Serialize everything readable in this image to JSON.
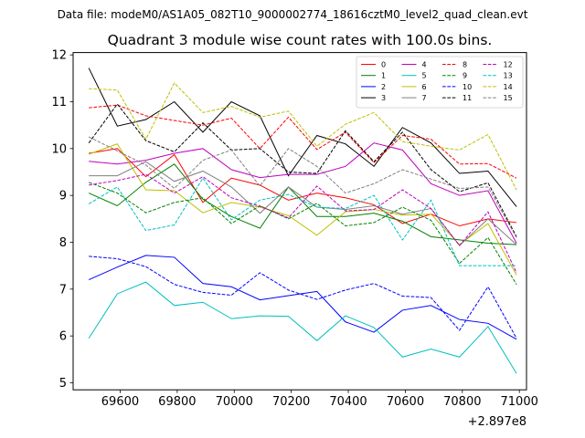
{
  "chart_data": {
    "type": "line",
    "suptitle": "Data file: modeM0/AS1A05_082T10_9000002774_18616cztM0_level2_quad_clean.evt",
    "title": "Quadrant 3 module wise count rates with 100.0s bins.",
    "xlabel": "",
    "ylabel": "",
    "x_offset_label": "+2.897e8",
    "xlim": [
      69435,
      71025
    ],
    "ylim": [
      4.85,
      12.05
    ],
    "x_ticks": [
      69600,
      69800,
      70000,
      70200,
      70400,
      70600,
      70800,
      71000
    ],
    "x_tick_labels": [
      "69600",
      "69800",
      "70000",
      "70200",
      "70400",
      "70600",
      "70800",
      "71000"
    ],
    "y_ticks": [
      5,
      6,
      7,
      8,
      9,
      10,
      11,
      12
    ],
    "y_tick_labels": [
      "5",
      "6",
      "7",
      "8",
      "9",
      "10",
      "11",
      "12"
    ],
    "legend_position": "top-right",
    "grid": false,
    "x": [
      69490,
      69590,
      69690,
      69790,
      69890,
      69990,
      70090,
      70190,
      70290,
      70390,
      70490,
      70590,
      70690,
      70790,
      70890,
      70990
    ],
    "series": [
      {
        "name": "0",
        "color": "#ff0000",
        "dash": "solid",
        "values": [
          9.9,
          10.0,
          9.4,
          9.87,
          8.85,
          9.37,
          9.22,
          8.9,
          9.05,
          8.95,
          8.8,
          8.4,
          8.6,
          8.35,
          8.5,
          8.42
        ]
      },
      {
        "name": "1",
        "color": "#008000",
        "dash": "solid",
        "values": [
          9.05,
          8.78,
          9.28,
          9.67,
          8.92,
          8.55,
          8.3,
          9.18,
          8.55,
          8.55,
          8.62,
          8.45,
          8.12,
          8.05,
          7.98,
          7.95
        ]
      },
      {
        "name": "2",
        "color": "#0000ff",
        "dash": "solid",
        "values": [
          7.2,
          7.47,
          7.72,
          7.68,
          7.12,
          7.05,
          6.77,
          6.86,
          6.95,
          6.3,
          6.08,
          6.55,
          6.65,
          6.35,
          6.27,
          5.93
        ]
      },
      {
        "name": "3",
        "color": "#000000",
        "dash": "solid",
        "values": [
          11.72,
          10.48,
          10.62,
          11.0,
          10.35,
          11.0,
          10.7,
          9.42,
          10.28,
          10.1,
          9.62,
          10.45,
          10.12,
          9.47,
          9.52,
          8.76
        ]
      },
      {
        "name": "4",
        "color": "#bf00bf",
        "dash": "solid",
        "values": [
          9.73,
          9.67,
          9.75,
          9.9,
          10.0,
          9.55,
          9.38,
          9.45,
          9.45,
          9.62,
          10.12,
          9.97,
          9.25,
          9.0,
          9.1,
          7.98
        ]
      },
      {
        "name": "5",
        "color": "#00bfbf",
        "dash": "solid",
        "values": [
          5.95,
          6.9,
          7.15,
          6.65,
          6.72,
          6.37,
          6.43,
          6.42,
          5.9,
          6.43,
          6.18,
          5.55,
          5.72,
          5.55,
          6.2,
          5.2
        ]
      },
      {
        "name": "6",
        "color": "#bfbf00",
        "dash": "solid",
        "values": [
          9.88,
          10.1,
          9.12,
          9.1,
          8.63,
          8.85,
          8.75,
          8.57,
          8.15,
          8.65,
          8.7,
          8.58,
          8.6,
          7.95,
          8.4,
          7.3
        ]
      },
      {
        "name": "7",
        "color": "#808080",
        "dash": "solid",
        "values": [
          9.42,
          9.42,
          9.72,
          9.3,
          9.52,
          9.18,
          8.62,
          9.18,
          8.75,
          8.7,
          8.78,
          8.6,
          8.72,
          7.93,
          8.5,
          7.95
        ]
      },
      {
        "name": "8",
        "color": "#ff0000",
        "dash": "dashed",
        "values": [
          10.87,
          10.93,
          10.7,
          10.6,
          10.5,
          10.65,
          10.0,
          10.67,
          9.98,
          10.35,
          9.7,
          10.28,
          10.2,
          9.67,
          9.68,
          9.37
        ]
      },
      {
        "name": "9",
        "color": "#008000",
        "dash": "dashed",
        "values": [
          9.28,
          9.05,
          8.63,
          8.85,
          8.95,
          8.4,
          8.78,
          8.5,
          8.83,
          8.35,
          8.42,
          8.75,
          8.47,
          7.55,
          8.1,
          7.1
        ]
      },
      {
        "name": "10",
        "color": "#0000ff",
        "dash": "dashed",
        "values": [
          7.7,
          7.65,
          7.48,
          7.1,
          6.93,
          6.87,
          7.35,
          6.98,
          6.78,
          6.98,
          7.12,
          6.85,
          6.82,
          6.12,
          7.05,
          5.95
        ]
      },
      {
        "name": "11",
        "color": "#000000",
        "dash": "dashed",
        "values": [
          10.12,
          10.95,
          10.17,
          9.93,
          10.55,
          9.97,
          10.0,
          9.5,
          9.47,
          10.38,
          9.72,
          10.35,
          9.55,
          9.08,
          9.27,
          8.12
        ]
      },
      {
        "name": "12",
        "color": "#bf00bf",
        "dash": "dashed",
        "values": [
          9.22,
          9.32,
          9.45,
          9.05,
          9.4,
          8.95,
          8.77,
          8.52,
          9.2,
          8.67,
          8.7,
          9.12,
          8.72,
          7.93,
          8.65,
          7.35
        ]
      },
      {
        "name": "13",
        "color": "#00bfbf",
        "dash": "dashed",
        "values": [
          8.82,
          9.18,
          8.25,
          8.37,
          9.37,
          8.48,
          8.9,
          9.02,
          8.75,
          8.72,
          9.0,
          8.05,
          8.9,
          7.5,
          7.5,
          7.5
        ]
      },
      {
        "name": "14",
        "color": "#bfbf00",
        "dash": "dashed",
        "values": [
          11.28,
          11.25,
          10.2,
          11.4,
          10.77,
          10.9,
          10.67,
          10.8,
          10.05,
          10.52,
          10.77,
          10.15,
          10.05,
          9.97,
          10.3,
          9.12
        ]
      },
      {
        "name": "15",
        "color": "#808080",
        "dash": "dashed",
        "values": [
          10.25,
          9.95,
          9.65,
          9.15,
          9.75,
          9.97,
          9.2,
          10.0,
          9.62,
          9.05,
          9.25,
          9.55,
          9.35,
          9.15,
          9.18,
          8.1
        ]
      }
    ]
  }
}
